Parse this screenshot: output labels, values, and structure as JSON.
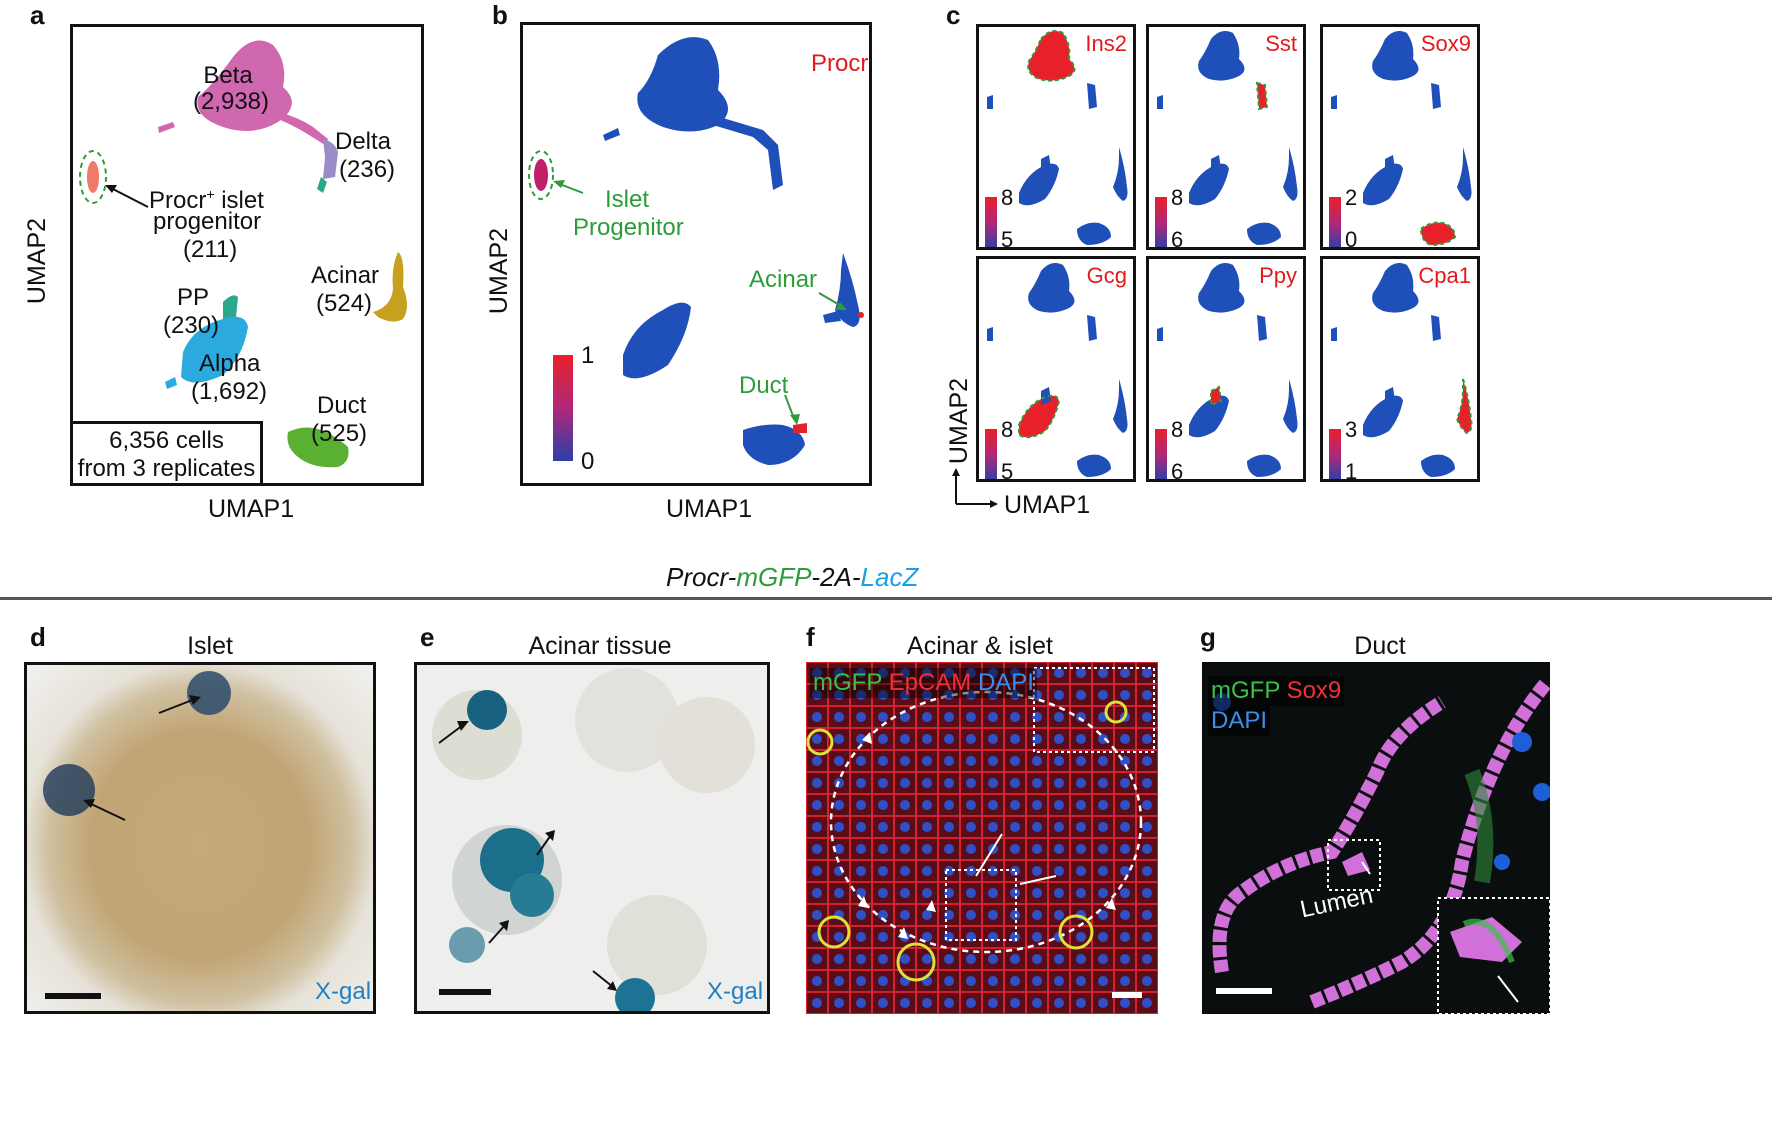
{
  "panels": {
    "a": {
      "letter": "a",
      "xaxis": "UMAP1",
      "yaxis": "UMAP2",
      "clusters": {
        "beta": "Beta",
        "beta_n": "(2,938)",
        "delta": "Delta",
        "delta_n": "(236)",
        "procr_a": "Procr",
        "procr_sup": "+",
        "procr_b": " islet",
        "progenitor": "progenitor",
        "progenitor_n": "(211)",
        "pp": "PP",
        "pp_n": "(230)",
        "alpha": "Alpha",
        "alpha_n": "(1,692)",
        "acinar": "Acinar",
        "acinar_n": "(524)",
        "duct": "Duct",
        "duct_n": "(525)"
      },
      "cells_line1": "6,356 cells",
      "cells_line2": "from 3 replicates"
    },
    "b": {
      "letter": "b",
      "xaxis": "UMAP1",
      "yaxis": "UMAP2",
      "gene": "Procr",
      "islet": "Islet",
      "progenitor": "Progenitor",
      "acinar": "Acinar",
      "duct": "Duct",
      "scale_max": "1",
      "scale_min": "0"
    },
    "c": {
      "letter": "c",
      "xaxis": "UMAP1",
      "yaxis": "UMAP2",
      "genes": [
        {
          "name": "Ins2",
          "max": "8",
          "min": "5"
        },
        {
          "name": "Sst",
          "max": "8",
          "min": "6"
        },
        {
          "name": "Sox9",
          "max": "2",
          "min": "0"
        },
        {
          "name": "Gcg",
          "max": "8",
          "min": "5"
        },
        {
          "name": "Ppy",
          "max": "8",
          "min": "6"
        },
        {
          "name": "Cpa1",
          "max": "3",
          "min": "1"
        }
      ]
    },
    "construct": {
      "part1": "Procr-",
      "part2": "mGFP",
      "part3": "-2A-",
      "part4": "LacZ"
    },
    "d": {
      "letter": "d",
      "title": "Islet",
      "stain": "X-gal"
    },
    "e": {
      "letter": "e",
      "title": "Acinar tissue",
      "stain": "X-gal"
    },
    "f": {
      "letter": "f",
      "title": "Acinar & islet",
      "ch1": "mGFP",
      "ch2": "EpCAM",
      "ch3": "DAPI"
    },
    "g": {
      "letter": "g",
      "title": "Duct",
      "ch1": "mGFP",
      "ch2": "Sox9",
      "ch3": "DAPI",
      "lumen": "Lumen"
    }
  },
  "colors": {
    "beta": "#d068b0",
    "delta": "#9a8cc8",
    "procr": "#f07a6a",
    "pp": "#2aa88a",
    "alpha": "#2aaadf",
    "acinar": "#c8a020",
    "duct": "#5ab030",
    "umap_blue": "#1f4fb8",
    "expr_red": "#e8202a",
    "label_red": "#e31a1c",
    "label_green": "#2e9b3a",
    "label_blue": "#1ea1e4"
  }
}
